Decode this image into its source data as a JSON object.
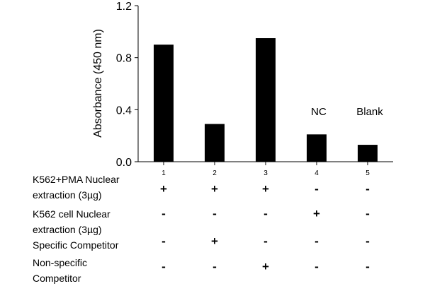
{
  "chart_data": {
    "type": "bar",
    "categories": [
      "1",
      "2",
      "3",
      "4",
      "5"
    ],
    "values": [
      0.9,
      0.29,
      0.95,
      0.21,
      0.13
    ],
    "bar_annotations": [
      "",
      "",
      "",
      "NC",
      "Blank"
    ],
    "title": "",
    "xlabel": "",
    "ylabel": "Absorbance (450 nm)",
    "ylim": [
      0.0,
      1.2
    ],
    "yticks": [
      "0.0",
      "0.4",
      "0.8",
      "1.2"
    ],
    "bar_color": "#000000",
    "grid": false,
    "legend": "none"
  },
  "conditions": [
    {
      "label_lines": [
        "K562+PMA Nuclear",
        "extraction (3µg)"
      ],
      "signs": [
        "+",
        "+",
        "+",
        "-",
        "-"
      ]
    },
    {
      "label_lines": [
        "K562 cell Nuclear",
        "extraction (3µg)"
      ],
      "signs": [
        "-",
        "-",
        "-",
        "+",
        "-"
      ]
    },
    {
      "label_lines": [
        "Specific Competitor"
      ],
      "signs": [
        "-",
        "+",
        "-",
        "-",
        "-"
      ]
    },
    {
      "label_lines": [
        "Non-specific",
        "Competitor"
      ],
      "signs": [
        "-",
        "-",
        "+",
        "-",
        "-"
      ]
    }
  ]
}
